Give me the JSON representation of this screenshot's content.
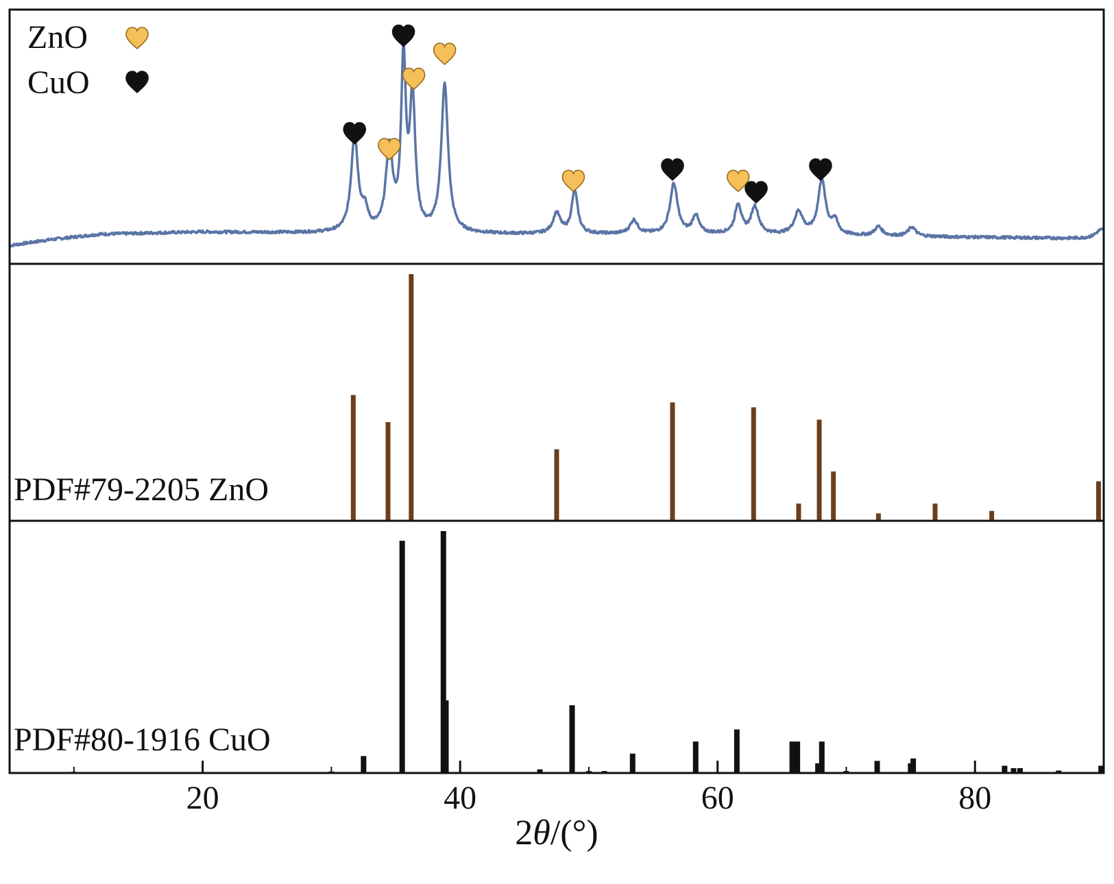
{
  "chart_data": {
    "type": "line",
    "xlabel_parts": [
      "2",
      "θ",
      "/(°)"
    ],
    "xlim": [
      5,
      90
    ],
    "xticks": [
      20,
      40,
      60,
      80
    ],
    "panels": [
      {
        "id": "sample",
        "type": "line",
        "color": "#5a74a6",
        "legend": [
          {
            "label": "ZnO",
            "marker_color": "#f5c05a"
          },
          {
            "label": "CuO",
            "marker_color": "#111111"
          }
        ],
        "series": {
          "baseline": [
            [
              5,
              0.02
            ],
            [
              8,
              0.045
            ],
            [
              12,
              0.07
            ],
            [
              20,
              0.08
            ],
            [
              30,
              0.075
            ],
            [
              45,
              0.07
            ],
            [
              60,
              0.07
            ],
            [
              75,
              0.06
            ],
            [
              90,
              0.05
            ]
          ],
          "peaks": [
            {
              "pos": 31.8,
              "height": 0.42,
              "width": 0.32
            },
            {
              "pos": 32.6,
              "height": 0.08,
              "width": 0.3
            },
            {
              "pos": 34.5,
              "height": 0.36,
              "width": 0.32
            },
            {
              "pos": 35.6,
              "height": 0.74,
              "width": 0.22
            },
            {
              "pos": 36.3,
              "height": 0.58,
              "width": 0.26
            },
            {
              "pos": 38.8,
              "height": 0.65,
              "width": 0.32
            },
            {
              "pos": 47.5,
              "height": 0.09,
              "width": 0.35
            },
            {
              "pos": 48.9,
              "height": 0.19,
              "width": 0.28
            },
            {
              "pos": 53.5,
              "height": 0.06,
              "width": 0.35
            },
            {
              "pos": 56.6,
              "height": 0.22,
              "width": 0.35
            },
            {
              "pos": 58.3,
              "height": 0.08,
              "width": 0.3
            },
            {
              "pos": 61.6,
              "height": 0.13,
              "width": 0.3
            },
            {
              "pos": 62.9,
              "height": 0.12,
              "width": 0.35
            },
            {
              "pos": 66.3,
              "height": 0.1,
              "width": 0.4
            },
            {
              "pos": 68.1,
              "height": 0.24,
              "width": 0.35
            },
            {
              "pos": 69.1,
              "height": 0.06,
              "width": 0.3
            },
            {
              "pos": 72.5,
              "height": 0.04,
              "width": 0.35
            },
            {
              "pos": 75.1,
              "height": 0.04,
              "width": 0.35
            },
            {
              "pos": 89.8,
              "height": 0.04,
              "width": 0.5
            }
          ]
        },
        "markers": [
          {
            "x": 31.8,
            "phase": "CuO",
            "y": 0.52
          },
          {
            "x": 34.5,
            "phase": "ZnO",
            "y": 0.45
          },
          {
            "x": 35.6,
            "phase": "CuO",
            "y": 0.95
          },
          {
            "x": 36.4,
            "phase": "ZnO",
            "y": 0.76
          },
          {
            "x": 38.8,
            "phase": "ZnO",
            "y": 0.87
          },
          {
            "x": 48.8,
            "phase": "ZnO",
            "y": 0.31
          },
          {
            "x": 56.5,
            "phase": "CuO",
            "y": 0.36
          },
          {
            "x": 61.6,
            "phase": "ZnO",
            "y": 0.31
          },
          {
            "x": 63.0,
            "phase": "CuO",
            "y": 0.26
          },
          {
            "x": 68.0,
            "phase": "CuO",
            "y": 0.36
          }
        ]
      },
      {
        "id": "znO-ref",
        "type": "bar",
        "label": "PDF#79-2205 ZnO",
        "color": "#6b3f1d",
        "sticks": [
          [
            31.7,
            0.51
          ],
          [
            34.4,
            0.4
          ],
          [
            36.2,
            1.0
          ],
          [
            47.5,
            0.29
          ],
          [
            56.5,
            0.48
          ],
          [
            62.8,
            0.46
          ],
          [
            66.3,
            0.07
          ],
          [
            67.9,
            0.41
          ],
          [
            69.0,
            0.2
          ],
          [
            72.5,
            0.03
          ],
          [
            76.9,
            0.07
          ],
          [
            81.3,
            0.04
          ],
          [
            89.6,
            0.16
          ]
        ]
      },
      {
        "id": "cuo-ref",
        "type": "bar",
        "label": "PDF#80-1916 CuO",
        "color": "#111111",
        "sticks": [
          [
            10.0,
            0.005
          ],
          [
            30.0,
            0.006
          ],
          [
            32.5,
            0.07
          ],
          [
            35.5,
            0.96
          ],
          [
            38.7,
            1.0
          ],
          [
            38.9,
            0.3
          ],
          [
            46.2,
            0.015
          ],
          [
            48.7,
            0.28
          ],
          [
            50.0,
            0.008
          ],
          [
            51.2,
            0.008
          ],
          [
            53.4,
            0.08
          ],
          [
            58.3,
            0.13
          ],
          [
            61.5,
            0.18
          ],
          [
            65.8,
            0.13
          ],
          [
            66.2,
            0.13
          ],
          [
            67.8,
            0.04
          ],
          [
            68.1,
            0.13
          ],
          [
            70.0,
            0.008
          ],
          [
            72.4,
            0.05
          ],
          [
            75.0,
            0.04
          ],
          [
            75.2,
            0.06
          ],
          [
            82.3,
            0.03
          ],
          [
            83.0,
            0.02
          ],
          [
            83.5,
            0.02
          ],
          [
            86.5,
            0.01
          ],
          [
            89.8,
            0.03
          ]
        ]
      }
    ]
  }
}
